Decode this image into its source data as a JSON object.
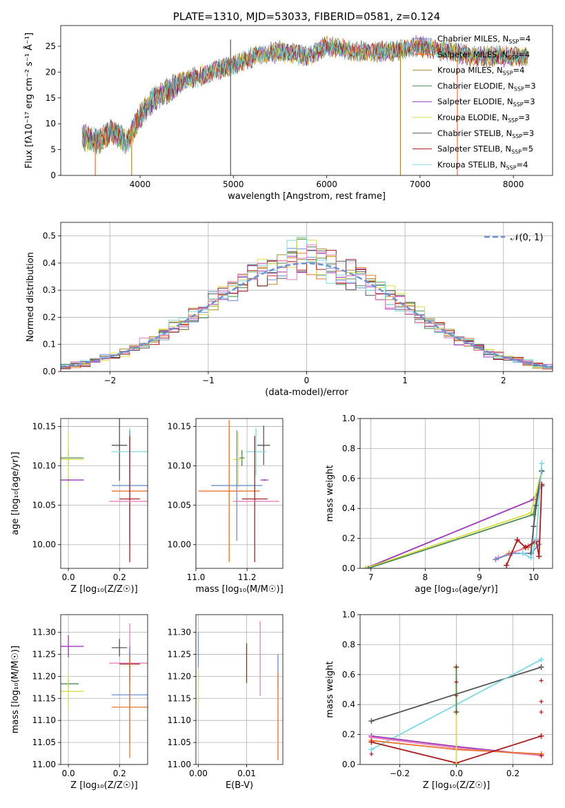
{
  "chart_data": [
    {
      "id": "spectrum",
      "type": "line",
      "title": "PLATE=1310, MJD=53033, FIBERID=0581, z=0.124",
      "xlabel": "wavelength [Angstrom, rest frame]",
      "ylabel": "Flux [fλ10⁻¹⁷ erg cm⁻² s⁻¹ Å⁻¹]",
      "xlim": [
        3150,
        8420
      ],
      "ylim": [
        0,
        29
      ],
      "xticks": [
        4000,
        5000,
        6000,
        7000,
        8000
      ],
      "yticks": [
        0,
        5,
        10,
        15,
        20,
        25
      ],
      "grid": false,
      "legend_position": "top-right",
      "continuum": {
        "x": [
          3380,
          3550,
          3700,
          3850,
          3900,
          4000,
          4100,
          4200,
          4300,
          4500,
          4700,
          5000,
          5300,
          5500,
          5800,
          6000,
          6300,
          6500,
          6700,
          7000,
          7300,
          7600,
          7900,
          8150
        ],
        "y": [
          7.5,
          6.5,
          8.5,
          6.5,
          8.0,
          11.5,
          14.0,
          15.5,
          16.5,
          18.5,
          19.5,
          21.5,
          23.5,
          24.0,
          23.0,
          25.0,
          24.0,
          24.0,
          24.0,
          25.0,
          24.0,
          23.0,
          23.0,
          23.0
        ]
      },
      "spikes": [
        {
          "x": 3520,
          "series": "Salpeter MILES"
        },
        {
          "x": 3910,
          "series": "Kroupa MILES"
        },
        {
          "x": 4970,
          "series": "Chabrier STELIB"
        },
        {
          "x": 6790,
          "series": "Kroupa MILES"
        },
        {
          "x": 7400,
          "series": "Salpeter MILES"
        }
      ],
      "series": [
        {
          "name": "Chabrier MILES, N",
          "sub": "SSP",
          "suffix": "=4",
          "color": "#6a8fd2"
        },
        {
          "name": "Salpeter MILES, N",
          "sub": "SSP",
          "suffix": "=4",
          "color": "#e8732a"
        },
        {
          "name": "Kroupa MILES, N",
          "sub": "SSP",
          "suffix": "=4",
          "color": "#a88a2c"
        },
        {
          "name": "Chabrier ELODIE, N",
          "sub": "SSP",
          "suffix": "=3",
          "color": "#4f8a55"
        },
        {
          "name": "Salpeter ELODIE, N",
          "sub": "SSP",
          "suffix": "=3",
          "color": "#9c36b5"
        },
        {
          "name": "Kroupa ELODIE, N",
          "sub": "SSP",
          "suffix": "=3",
          "color": "#d8e040"
        },
        {
          "name": "Chabrier STELIB, N",
          "sub": "SSP",
          "suffix": "=3",
          "color": "#555555"
        },
        {
          "name": "Salpeter STELIB, N",
          "sub": "SSP",
          "suffix": "=5",
          "color": "#a81c1c"
        },
        {
          "name": "Kroupa STELIB, N",
          "sub": "SSP",
          "suffix": "=4",
          "color": "#7dd8df"
        }
      ]
    },
    {
      "id": "residuals",
      "type": "histogram",
      "xlabel": "(data-model)/error",
      "ylabel": "Normed distribution",
      "xlim": [
        -2.5,
        2.5
      ],
      "ylim": [
        0,
        0.55
      ],
      "xticks": [
        -2,
        -1,
        0,
        1,
        2
      ],
      "yticks": [
        0.0,
        0.1,
        0.2,
        0.3,
        0.4,
        0.5
      ],
      "grid": true,
      "legend_position": "top-right",
      "legend_label": "𝒩(0, 1)",
      "bin_width": 0.1,
      "curve": {
        "type": "gaussian",
        "mean": 0,
        "sigma": 1,
        "color": "#6a8fd2"
      },
      "series_colors": [
        "#6a8fd2",
        "#e8732a",
        "#a88a2c",
        "#4f8a55",
        "#9c36b5",
        "#d8e040",
        "#555555",
        "#a81c1c",
        "#7dd8df",
        "#e77fbf"
      ]
    },
    {
      "id": "age-vs-Z",
      "type": "errorbar",
      "xlabel": "Z [log₁₀(Z/Z☉)]",
      "ylabel": "age  [log₁₀(age/yr)]",
      "xlim": [
        -0.03,
        0.31
      ],
      "ylim": [
        9.97,
        10.16
      ],
      "xticks": [
        0.0,
        0.2
      ],
      "yticks": [
        10.0,
        10.05,
        10.1,
        10.15
      ],
      "grid": true,
      "points": [
        {
          "x": 0.0,
          "y": 10.11,
          "xerr": 0.06,
          "yerr": 0.01,
          "color": "#4f8a55"
        },
        {
          "x": 0.0,
          "y": 10.108,
          "xerr": 0.06,
          "yerr": 0.035,
          "color": "#d8e040"
        },
        {
          "x": 0.0,
          "y": 10.082,
          "xerr": 0.06,
          "yerr": 0.001,
          "color": "#9c36b5"
        },
        {
          "x": 0.2,
          "y": 10.126,
          "xerr": 0.03,
          "yerr": 0.045,
          "color": "#555555"
        },
        {
          "x": 0.24,
          "y": 10.118,
          "xerr": 0.07,
          "yerr": 0.03,
          "color": "#7dd8df"
        },
        {
          "x": 0.24,
          "y": 10.075,
          "xerr": 0.07,
          "yerr": 0.07,
          "color": "#6a8fd2"
        },
        {
          "x": 0.24,
          "y": 10.068,
          "xerr": 0.07,
          "yerr": 0.001,
          "color": "#e8732a"
        },
        {
          "x": 0.24,
          "y": 10.058,
          "xerr": 0.04,
          "yerr": 0.08,
          "color": "#a81c1c"
        },
        {
          "x": 0.24,
          "y": 10.055,
          "xerr": 0.08,
          "yerr": 0.001,
          "color": "#e77fbf"
        }
      ]
    },
    {
      "id": "age-vs-mass",
      "type": "errorbar",
      "xlabel": "mass [log₁₀(M/M☉)]",
      "ylabel": "",
      "xlim": [
        11.0,
        11.34
      ],
      "ylim": [
        9.97,
        10.16
      ],
      "xticks": [
        11.0,
        11.2
      ],
      "yticks": [
        10.0,
        10.05,
        10.1,
        10.15
      ],
      "grid": true,
      "points": [
        {
          "x": 11.18,
          "y": 10.11,
          "xerr": 0.01,
          "yerr": 0.01,
          "color": "#4f8a55"
        },
        {
          "x": 11.165,
          "y": 10.108,
          "xerr": 0.02,
          "yerr": 0.035,
          "color": "#d8e040"
        },
        {
          "x": 11.268,
          "y": 10.082,
          "xerr": 0.015,
          "yerr": 0.001,
          "color": "#9c36b5"
        },
        {
          "x": 11.265,
          "y": 10.126,
          "xerr": 0.025,
          "yerr": 0.025,
          "color": "#555555"
        },
        {
          "x": 11.235,
          "y": 10.118,
          "xerr": 0.04,
          "yerr": 0.03,
          "color": "#7dd8df"
        },
        {
          "x": 11.16,
          "y": 10.075,
          "xerr": 0.1,
          "yerr": 0.07,
          "color": "#6a8fd2"
        },
        {
          "x": 11.13,
          "y": 10.068,
          "xerr": 0.12,
          "yerr": 0.09,
          "color": "#e8732a"
        },
        {
          "x": 11.23,
          "y": 10.058,
          "xerr": 0.05,
          "yerr": 0.08,
          "color": "#a81c1c"
        },
        {
          "x": 11.235,
          "y": 10.055,
          "xerr": 0.09,
          "yerr": 0.001,
          "color": "#e77fbf"
        }
      ]
    },
    {
      "id": "weight-vs-age",
      "type": "line",
      "xlabel": "age  [log₁₀(age/yr)]",
      "ylabel": "mass weight",
      "xlim": [
        6.8,
        10.35
      ],
      "ylim": [
        0,
        1.0
      ],
      "xticks": [
        7,
        8,
        9,
        10
      ],
      "yticks": [
        0.0,
        0.2,
        0.4,
        0.6,
        0.8,
        1.0
      ],
      "grid": true,
      "series": [
        {
          "color": "#9c36b5",
          "x": [
            6.9,
            10.0,
            10.15
          ],
          "y": [
            0.0,
            0.46,
            0.55
          ]
        },
        {
          "color": "#d8e040",
          "x": [
            6.9,
            9.95,
            10.15
          ],
          "y": [
            0.0,
            0.37,
            0.65
          ]
        },
        {
          "color": "#4f8a55",
          "x": [
            6.95,
            10.0,
            10.15
          ],
          "y": [
            0.0,
            0.36,
            0.65
          ]
        },
        {
          "color": "#e8732a",
          "x": [
            9.3,
            9.55,
            9.9,
            10.05
          ],
          "y": [
            0.06,
            0.1,
            0.14,
            0.18
          ]
        },
        {
          "color": "#e77fbf",
          "x": [
            9.35,
            9.6,
            9.9,
            10.05
          ],
          "y": [
            0.07,
            0.1,
            0.15,
            0.19
          ]
        },
        {
          "color": "#6a8fd2",
          "x": [
            9.3,
            9.6,
            9.95,
            10.1
          ],
          "y": [
            0.06,
            0.1,
            0.1,
            0.16
          ]
        },
        {
          "color": "#a81c1c",
          "x": [
            9.5,
            9.7,
            9.85,
            10.05,
            10.1,
            10.15
          ],
          "y": [
            0.02,
            0.19,
            0.14,
            0.18,
            0.08,
            0.56
          ]
        },
        {
          "color": "#555555",
          "x": [
            9.95,
            10.0,
            10.05,
            10.15
          ],
          "y": [
            0.1,
            0.28,
            0.42,
            0.65
          ]
        },
        {
          "color": "#7dd8df",
          "x": [
            9.8,
            9.95,
            10.05,
            10.15
          ],
          "y": [
            0.1,
            0.07,
            0.2,
            0.7
          ]
        }
      ]
    },
    {
      "id": "mass-vs-Z",
      "type": "errorbar",
      "xlabel": "Z [log₁₀(Z/Z☉)]",
      "ylabel": "mass [log₁₀(M/M☉)]",
      "xlim": [
        -0.03,
        0.31
      ],
      "ylim": [
        11.0,
        11.34
      ],
      "xticks": [
        0.0,
        0.2
      ],
      "yticks": [
        11.0,
        11.05,
        11.1,
        11.15,
        11.2,
        11.25,
        11.3
      ],
      "grid": true,
      "points": [
        {
          "x": 0.0,
          "y": 11.268,
          "xerr": 0.06,
          "yerr": 0.025,
          "color": "#9c36b5"
        },
        {
          "x": 0.0,
          "y": 11.183,
          "xerr": 0.04,
          "yerr": 0.01,
          "color": "#4f8a55"
        },
        {
          "x": 0.0,
          "y": 11.166,
          "xerr": 0.06,
          "yerr": 0.04,
          "color": "#d8e040"
        },
        {
          "x": 0.2,
          "y": 11.265,
          "xerr": 0.03,
          "yerr": 0.02,
          "color": "#555555"
        },
        {
          "x": 0.24,
          "y": 11.23,
          "xerr": 0.08,
          "yerr": 0.09,
          "color": "#e77fbf"
        },
        {
          "x": 0.24,
          "y": 11.228,
          "xerr": 0.04,
          "yerr": 0.04,
          "color": "#a81c1c"
        },
        {
          "x": 0.24,
          "y": 11.158,
          "xerr": 0.07,
          "yerr": 0.11,
          "color": "#6a8fd2"
        },
        {
          "x": 0.24,
          "y": 11.13,
          "xerr": 0.07,
          "yerr": 0.115,
          "color": "#e8732a"
        }
      ]
    },
    {
      "id": "mass-vs-ebv",
      "type": "errorbar",
      "xlabel": "E(B-V)",
      "ylabel": "",
      "xlim": [
        -0.0005,
        0.0175
      ],
      "ylim": [
        11.0,
        11.34
      ],
      "xticks": [
        0.0,
        0.01
      ],
      "yticks": [
        11.0,
        11.05,
        11.1,
        11.15,
        11.2,
        11.25,
        11.3
      ],
      "grid": true,
      "points": [
        {
          "x": 0.0,
          "y": 11.26,
          "xerr": 0.0,
          "yerr": 0.04,
          "color": "#6a8fd2"
        },
        {
          "x": 0.0,
          "y": 11.17,
          "xerr": 0.0,
          "yerr": 0.04,
          "color": "#d8e040"
        },
        {
          "x": 0.01,
          "y": 11.23,
          "xerr": 0.0,
          "yerr": 0.045,
          "color": "#a81c1c"
        },
        {
          "x": 0.0128,
          "y": 11.24,
          "xerr": 0.0,
          "yerr": 0.085,
          "color": "#e77fbf"
        },
        {
          "x": 0.0165,
          "y": 11.21,
          "xerr": 0.0,
          "yerr": 0.04,
          "color": "#6a8fd2"
        },
        {
          "x": 0.0165,
          "y": 11.11,
          "xerr": 0.0,
          "yerr": 0.1,
          "color": "#e8732a"
        }
      ]
    },
    {
      "id": "weight-vs-Z",
      "type": "line",
      "xlabel": "Z [log₁₀(Z/Z☉)]",
      "ylabel": "mass weight",
      "xlim": [
        -0.34,
        0.34
      ],
      "ylim": [
        0,
        1.0
      ],
      "xticks": [
        -0.2,
        0.0,
        0.2
      ],
      "yticks": [
        0.0,
        0.2,
        0.4,
        0.6,
        0.8,
        1.0
      ],
      "grid": true,
      "series": [
        {
          "color": "#555555",
          "x": [
            -0.3,
            0.3
          ],
          "y": [
            0.29,
            0.65
          ]
        },
        {
          "color": "#7dd8df",
          "x": [
            -0.3,
            0.3
          ],
          "y": [
            0.1,
            0.7
          ]
        },
        {
          "color": "#9c36b5",
          "x": [
            -0.3,
            0.0,
            0.3
          ],
          "y": [
            0.19,
            0.12,
            0.06
          ]
        },
        {
          "color": "#e77fbf",
          "x": [
            -0.3,
            0.0,
            0.3
          ],
          "y": [
            0.18,
            0.11,
            0.06
          ]
        },
        {
          "color": "#e8732a",
          "x": [
            -0.3,
            0.0,
            0.3
          ],
          "y": [
            0.16,
            0.1,
            0.07
          ]
        },
        {
          "color": "#a81c1c",
          "x": [
            -0.3,
            0.0,
            0.3
          ],
          "y": [
            0.15,
            0.01,
            0.19
          ]
        },
        {
          "color": "#d8e040",
          "x": [
            0.0,
            0.0
          ],
          "y": [
            0.0,
            0.65
          ]
        },
        {
          "color": "#4f8a55",
          "x": [
            0.0,
            0.0
          ],
          "y": [
            0.35,
            0.65
          ]
        }
      ],
      "markers": [
        {
          "x": 0.0,
          "y": 0.65
        },
        {
          "x": 0.0,
          "y": 0.55
        },
        {
          "x": 0.0,
          "y": 0.46
        },
        {
          "x": 0.0,
          "y": 0.35
        },
        {
          "x": 0.3,
          "y": 0.56
        },
        {
          "x": 0.3,
          "y": 0.42
        },
        {
          "x": 0.3,
          "y": 0.35
        },
        {
          "x": 0.3,
          "y": 0.06
        },
        {
          "x": -0.3,
          "y": 0.07
        }
      ]
    }
  ]
}
